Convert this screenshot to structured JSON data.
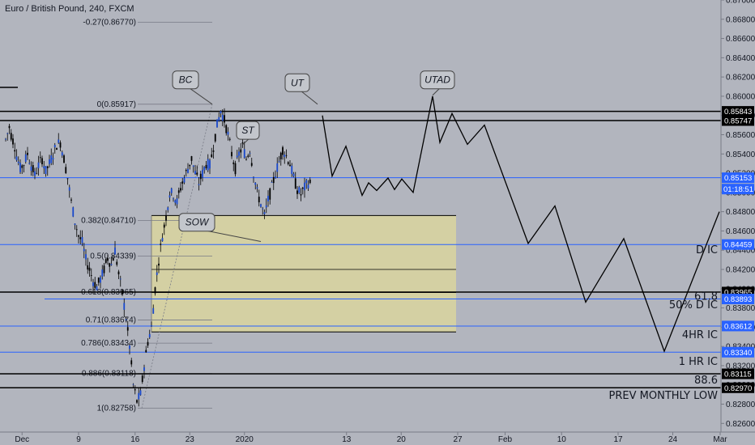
{
  "title": "Euro / British Pound, 240, FXCM",
  "chart_data": {
    "type": "line",
    "symbol_title": "Euro / British Pound, 240, FXCM",
    "ylim": [
      0.8251,
      0.87
    ],
    "y_ticks": [
      0.826,
      0.828,
      0.83,
      0.832,
      0.834,
      0.836,
      0.838,
      0.84,
      0.842,
      0.844,
      0.846,
      0.848,
      0.85,
      0.852,
      0.854,
      0.856,
      0.858,
      0.86,
      0.862,
      0.864,
      0.866,
      0.868,
      0.87
    ],
    "y_tick_labels": [
      "0.82600",
      "0.82800",
      "0.83000",
      "0.83200",
      "0.83400",
      "0.83600",
      "0.83800",
      "0.84000",
      "0.84200",
      "0.84400",
      "0.84600",
      "0.84800",
      "0.85000",
      "0.85200",
      "0.85400",
      "0.85600",
      "0.85800",
      "0.86000",
      "0.86200",
      "0.86400",
      "0.86600",
      "0.86800",
      "0.87000"
    ],
    "x_ticks": [
      {
        "label": "Dec",
        "bar": 9
      },
      {
        "label": "9",
        "bar": 40
      },
      {
        "label": "16",
        "bar": 71
      },
      {
        "label": "23",
        "bar": 101
      },
      {
        "label": "2020",
        "bar": 131
      },
      {
        "label": "13",
        "bar": 187
      },
      {
        "label": "20",
        "bar": 217
      },
      {
        "label": "27",
        "bar": 248
      },
      {
        "label": "Feb",
        "bar": 274
      },
      {
        "label": "10",
        "bar": 305
      },
      {
        "label": "17",
        "bar": 336
      },
      {
        "label": "24",
        "bar": 366
      },
      {
        "label": "Mar",
        "bar": 392
      }
    ],
    "price_path": [
      [
        0,
        0.8555
      ],
      [
        2,
        0.8568
      ],
      [
        3,
        0.856
      ],
      [
        5,
        0.8548
      ],
      [
        6,
        0.8538
      ],
      [
        8,
        0.8525
      ],
      [
        10,
        0.853
      ],
      [
        12,
        0.854
      ],
      [
        14,
        0.8528
      ],
      [
        16,
        0.8518
      ],
      [
        18,
        0.8528
      ],
      [
        20,
        0.8535
      ],
      [
        22,
        0.8522
      ],
      [
        24,
        0.853
      ],
      [
        26,
        0.854
      ],
      [
        28,
        0.855
      ],
      [
        30,
        0.8552
      ],
      [
        32,
        0.8535
      ],
      [
        34,
        0.8515
      ],
      [
        36,
        0.849
      ],
      [
        38,
        0.847
      ],
      [
        40,
        0.8455
      ],
      [
        42,
        0.8448
      ],
      [
        44,
        0.843
      ],
      [
        46,
        0.842
      ],
      [
        48,
        0.8408
      ],
      [
        50,
        0.8402
      ],
      [
        52,
        0.841
      ],
      [
        54,
        0.842
      ],
      [
        56,
        0.8432
      ],
      [
        58,
        0.8425
      ],
      [
        60,
        0.844
      ],
      [
        62,
        0.8415
      ],
      [
        64,
        0.8395
      ],
      [
        66,
        0.837
      ],
      [
        68,
        0.834
      ],
      [
        70,
        0.83
      ],
      [
        72,
        0.8283
      ],
      [
        74,
        0.829
      ],
      [
        76,
        0.832
      ],
      [
        78,
        0.8345
      ],
      [
        80,
        0.836
      ],
      [
        82,
        0.84
      ],
      [
        84,
        0.843
      ],
      [
        86,
        0.8455
      ],
      [
        88,
        0.8475
      ],
      [
        90,
        0.85
      ],
      [
        92,
        0.8498
      ],
      [
        94,
        0.849
      ],
      [
        96,
        0.8505
      ],
      [
        98,
        0.8515
      ],
      [
        100,
        0.8525
      ],
      [
        102,
        0.8535
      ],
      [
        104,
        0.852
      ],
      [
        106,
        0.851
      ],
      [
        108,
        0.852
      ],
      [
        110,
        0.853
      ],
      [
        112,
        0.8528
      ],
      [
        114,
        0.8548
      ],
      [
        116,
        0.857
      ],
      [
        118,
        0.8585
      ],
      [
        120,
        0.8575
      ],
      [
        122,
        0.856
      ],
      [
        124,
        0.854
      ],
      [
        126,
        0.8525
      ],
      [
        128,
        0.854
      ],
      [
        130,
        0.8548
      ],
      [
        132,
        0.8535
      ],
      [
        134,
        0.8545
      ],
      [
        136,
        0.852
      ],
      [
        138,
        0.85
      ],
      [
        140,
        0.8488
      ],
      [
        142,
        0.8475
      ],
      [
        144,
        0.8492
      ],
      [
        146,
        0.8505
      ],
      [
        148,
        0.852
      ],
      [
        150,
        0.8532
      ],
      [
        152,
        0.8545
      ],
      [
        154,
        0.8538
      ],
      [
        156,
        0.853
      ],
      [
        158,
        0.8515
      ],
      [
        160,
        0.8503
      ],
      [
        162,
        0.8498
      ],
      [
        164,
        0.8505
      ],
      [
        166,
        0.851
      ],
      [
        168,
        0.8508
      ]
    ],
    "projection_path": [
      [
        0.858,
        398
      ],
      [
        0.8517,
        410
      ],
      [
        0.8548,
        427
      ],
      [
        0.8497,
        447
      ],
      [
        0.851,
        455
      ],
      [
        0.8502,
        465
      ],
      [
        0.8515,
        479
      ],
      [
        0.8503,
        487
      ],
      [
        0.8514,
        496
      ],
      [
        0.85,
        510
      ],
      [
        0.86,
        534
      ],
      [
        0.8552,
        543
      ],
      [
        0.8582,
        558
      ],
      [
        0.855,
        577
      ],
      [
        0.857,
        598
      ],
      [
        0.8447,
        652
      ],
      [
        0.8486,
        685
      ],
      [
        0.8386,
        723
      ],
      [
        0.8452,
        770
      ],
      [
        0.8335,
        820
      ],
      [
        0.848,
        888
      ]
    ],
    "horizontal_levels": [
      {
        "price": 0.85843,
        "label": "0.85843",
        "color": "#000000",
        "tag_color": "#000000"
      },
      {
        "price": 0.85747,
        "label": "0.85747",
        "color": "#000000",
        "tag_color": "#000000"
      },
      {
        "price": 0.85153,
        "label": "0.85153",
        "color": "#2962ff",
        "tag_color": "#2962ff"
      },
      {
        "price": 0.84459,
        "label": "0.84459",
        "color": "#2962ff",
        "tag_color": "#2962ff"
      },
      {
        "price": 0.83965,
        "label": "0.83965",
        "color": "#000000",
        "tag_color": "#000000"
      },
      {
        "price": 0.83893,
        "label": "0.83893",
        "color": "#2962ff",
        "tag_color": "#2962ff"
      },
      {
        "price": 0.83612,
        "label": "0.83612",
        "color": "#2962ff",
        "tag_color": "#2962ff"
      },
      {
        "price": 0.8334,
        "label": "0.83340",
        "color": "#2962ff",
        "tag_color": "#2962ff"
      },
      {
        "price": 0.83115,
        "label": "0.83115",
        "color": "#000000",
        "tag_color": "#000000"
      },
      {
        "price": 0.8297,
        "label": "0.82970",
        "color": "#000000",
        "tag_color": "#000000"
      }
    ],
    "countdown": "01:18:51",
    "fib_levels": [
      {
        "label": "-0.27(0.86770)",
        "price": 0.8677
      },
      {
        "label": "0(0.85917)",
        "price": 0.85917
      },
      {
        "label": "0.382(0.84710)",
        "price": 0.8471
      },
      {
        "label": "0.5(0.84339)",
        "price": 0.84339
      },
      {
        "label": "0.618(0.83965)",
        "price": 0.83965
      },
      {
        "label": "0.71(0.83674)",
        "price": 0.83674
      },
      {
        "label": "0.786(0.83434)",
        "price": 0.83434
      },
      {
        "label": "0.886(0.83118)",
        "price": 0.83118
      },
      {
        "label": "1(0.82758)",
        "price": 0.82758
      }
    ],
    "zone": {
      "top": 0.8476,
      "bottom": 0.8355,
      "mid_lines": [
        0.842,
        0.8396
      ],
      "color": "#d7d3a0"
    },
    "callouts": [
      {
        "text": "BC",
        "price": 0.8617
      },
      {
        "text": "ST",
        "price": 0.85645
      },
      {
        "text": "UT",
        "price": 0.8614
      },
      {
        "text": "UTAD",
        "price": 0.8617
      },
      {
        "text": "SOW",
        "price": 0.8469
      }
    ],
    "level_annotations": [
      {
        "text": "D IC",
        "price": 0.844
      },
      {
        "text": "61.8",
        "price": 0.8392
      },
      {
        "text": "50% D IC",
        "price": 0.8383
      },
      {
        "text": "4HR IC",
        "price": 0.8352
      },
      {
        "text": "1 HR IC",
        "price": 0.8324
      },
      {
        "text": "88.6",
        "price": 0.8305
      },
      {
        "text": "PREV MONTHLY LOW",
        "price": 0.8289
      }
    ]
  }
}
